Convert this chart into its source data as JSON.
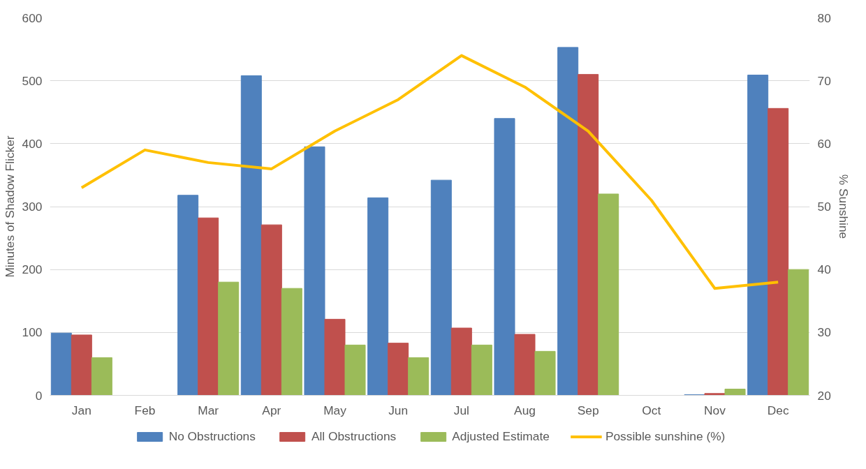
{
  "chart_data": {
    "type": "bar",
    "categories": [
      "Jan",
      "Feb",
      "Mar",
      "Apr",
      "May",
      "Jun",
      "Jul",
      "Aug",
      "Sep",
      "Oct",
      "Nov",
      "Dec"
    ],
    "ylabel": "Minutes of Shadow Flicker",
    "y2label": "% Sunshine",
    "ylim": [
      0,
      600
    ],
    "yticks": [
      0,
      100,
      200,
      300,
      400,
      500,
      600
    ],
    "y2lim": [
      20,
      80
    ],
    "y2ticks": [
      20,
      30,
      40,
      50,
      60,
      70,
      80
    ],
    "grid": "y",
    "legend": "bottom",
    "series": [
      {
        "name": "No Obstructions",
        "color": "#4f81bd",
        "values": [
          99,
          0,
          318,
          508,
          395,
          314,
          342,
          440,
          553,
          0,
          1,
          509
        ]
      },
      {
        "name": "All Obstructions",
        "color": "#c0504d",
        "values": [
          96,
          0,
          282,
          271,
          121,
          83,
          107,
          97,
          510,
          0,
          3,
          456
        ]
      },
      {
        "name": "Adjusted Estimate",
        "color": "#9bbb59",
        "values": [
          60,
          0,
          180,
          170,
          80,
          60,
          80,
          70,
          320,
          0,
          10,
          200
        ]
      },
      {
        "name": "Possible sunshine (%)",
        "color": "#ffc000",
        "type": "line",
        "axis": "y2",
        "values": [
          53,
          59,
          57,
          56,
          62,
          67,
          74,
          69,
          62,
          51,
          37,
          38
        ]
      }
    ]
  }
}
